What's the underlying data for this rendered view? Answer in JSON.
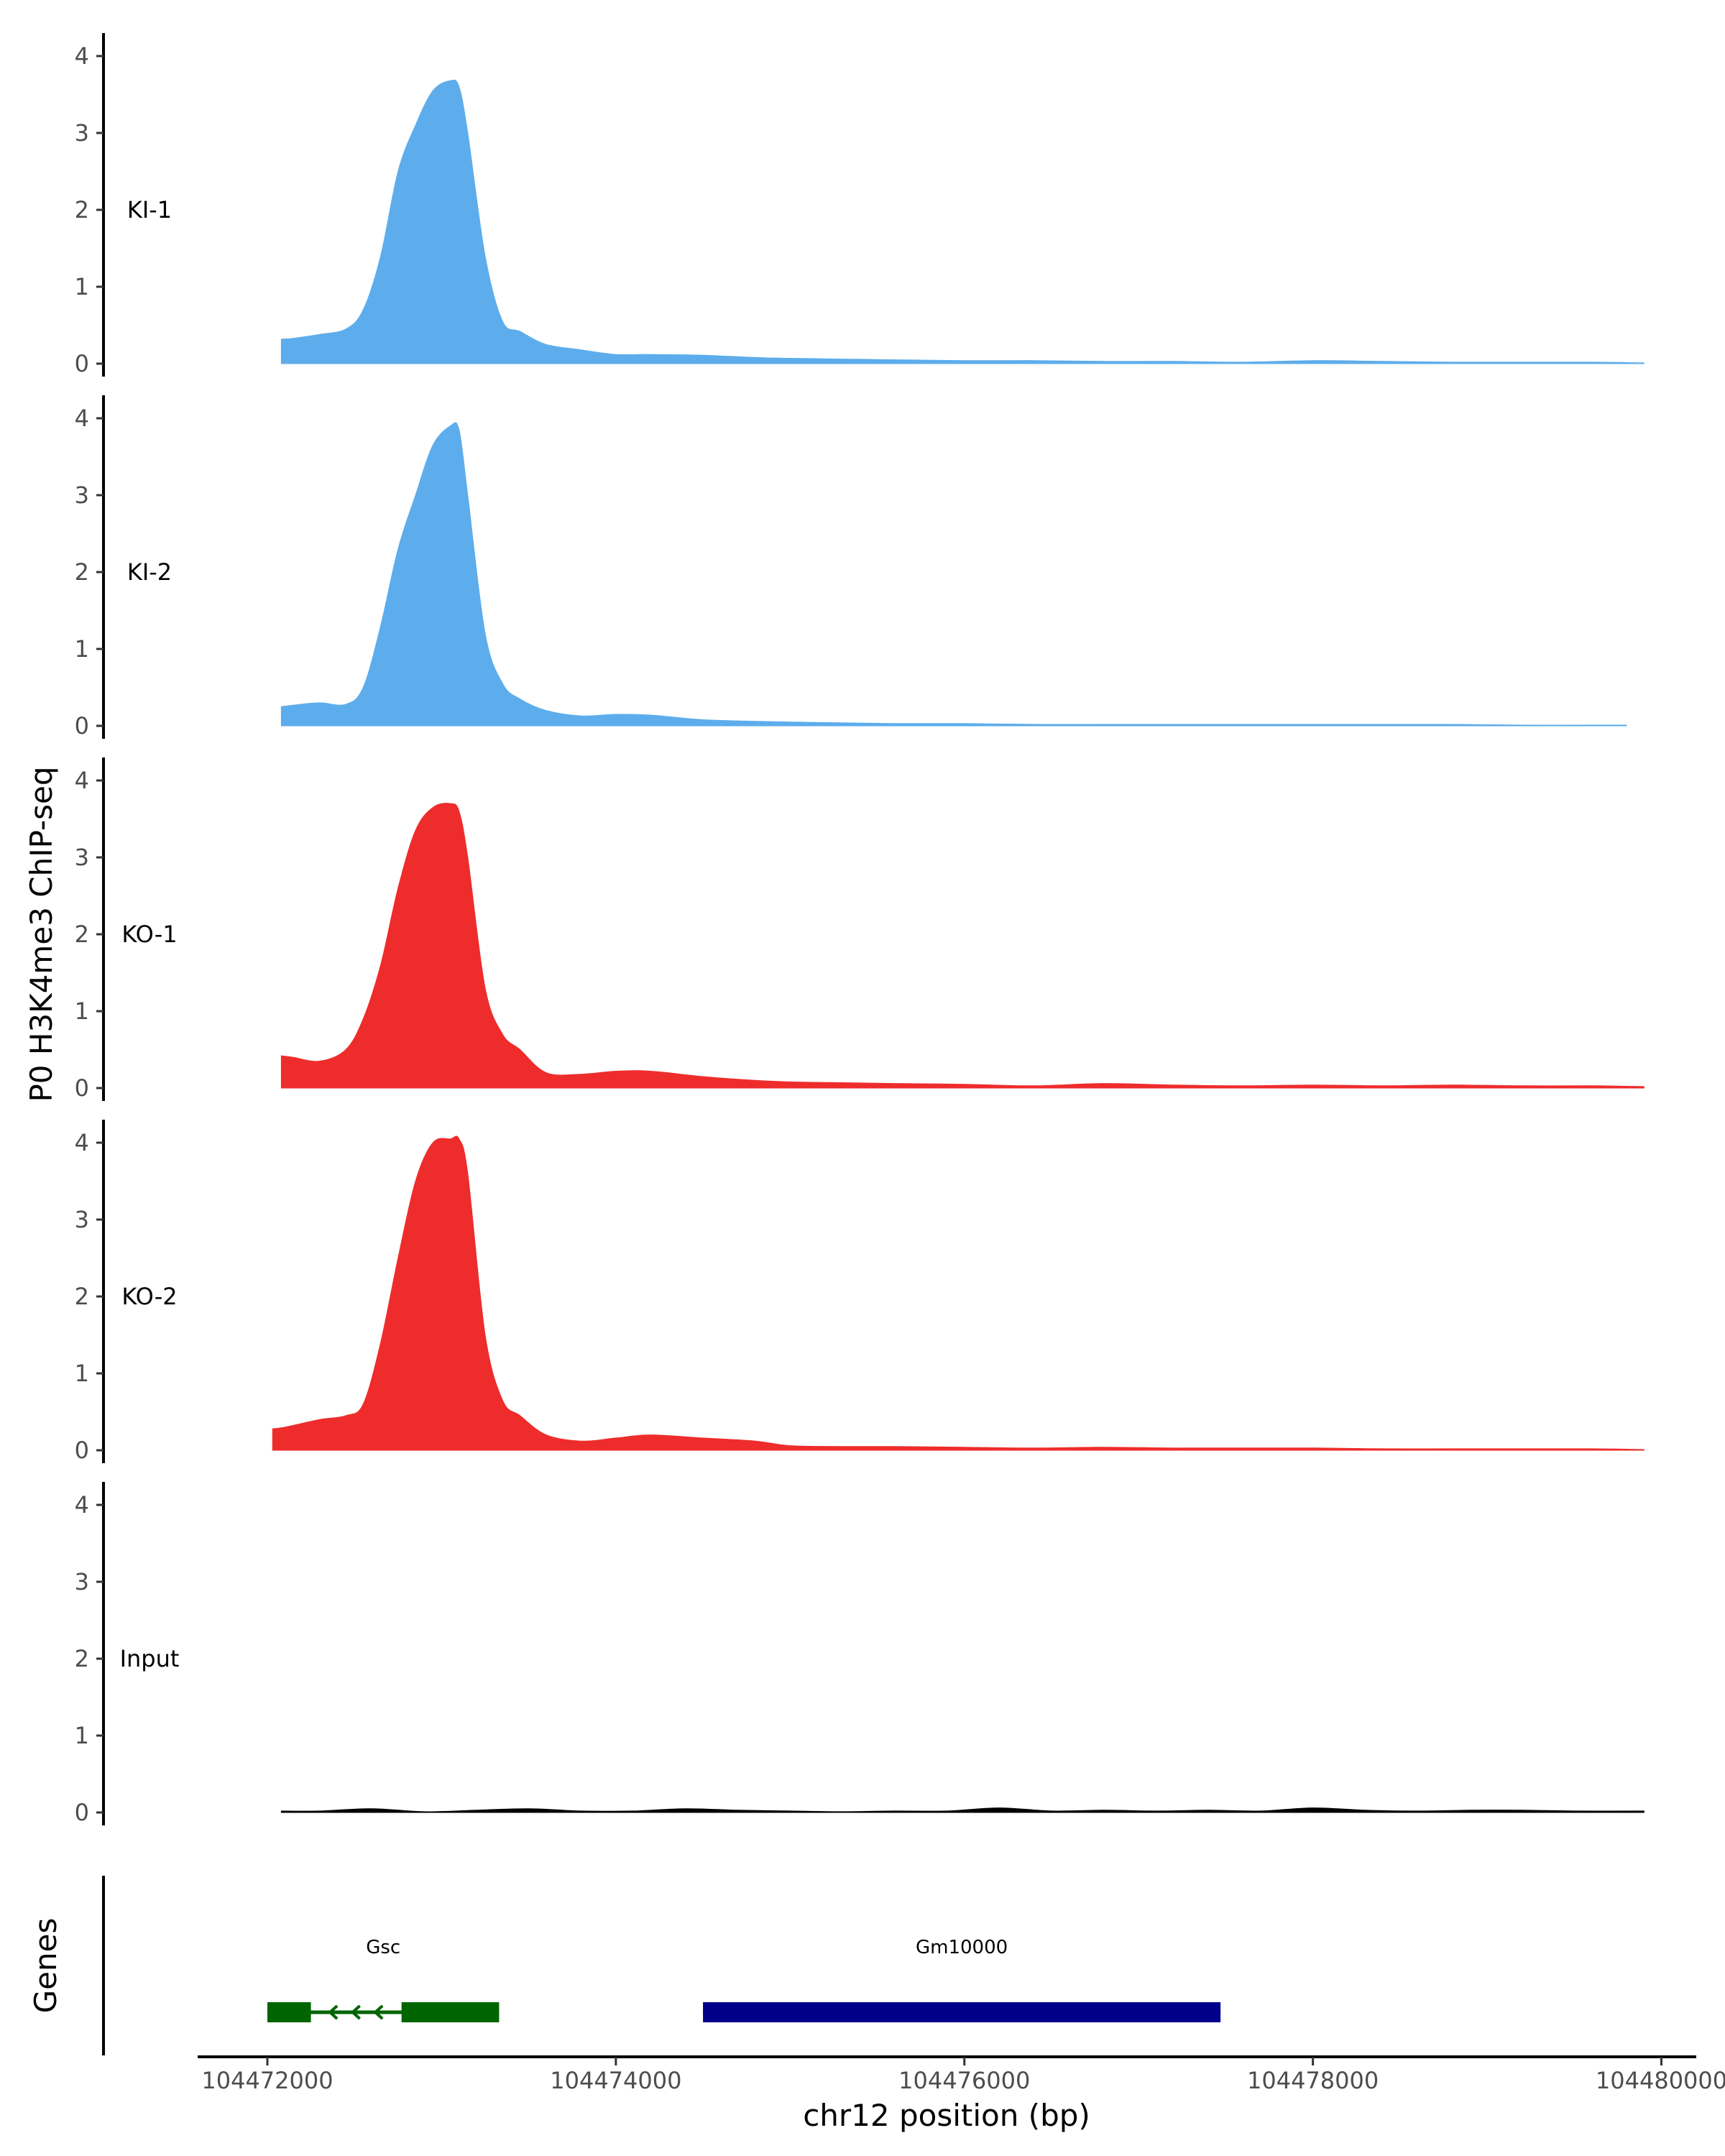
{
  "chart_data": {
    "type": "area",
    "title": "",
    "ylabel": "P0 H3K4me3 ChIP-seq",
    "xlabel": "chr12 position (bp)",
    "ylim": [
      0,
      4.3
    ],
    "yticks": [
      0,
      1,
      2,
      3,
      4
    ],
    "ytick_labels": [
      "0",
      "1",
      "2",
      "3",
      "4"
    ],
    "xlim": [
      104471600,
      104480200
    ],
    "xticks": [
      104472000,
      104474000,
      104476000,
      104478000,
      104480000
    ],
    "xtick_labels": [
      "104472000",
      "104474000",
      "104476000",
      "104478000",
      "104480000"
    ],
    "genes_track_label": "Genes",
    "tracks": [
      {
        "name": "KI-1",
        "color": "#5DADEC",
        "x": [
          104472080,
          104472150,
          104472300,
          104472450,
          104472550,
          104472650,
          104472750,
          104472850,
          104472950,
          104473050,
          104473100,
          104473150,
          104473250,
          104473350,
          104473450,
          104473600,
          104473800,
          104474000,
          104474200,
          104474500,
          104474800,
          104475000,
          104475300,
          104475600,
          104476000,
          104476400,
          104476800,
          104477200,
          104477600,
          104478000,
          104478400,
          104478800,
          104479200,
          104479600,
          104479900
        ],
        "values": [
          0.32,
          0.33,
          0.38,
          0.45,
          0.7,
          1.4,
          2.5,
          3.1,
          3.55,
          3.68,
          3.6,
          3.0,
          1.4,
          0.55,
          0.42,
          0.25,
          0.18,
          0.12,
          0.12,
          0.11,
          0.08,
          0.07,
          0.06,
          0.05,
          0.04,
          0.04,
          0.03,
          0.03,
          0.02,
          0.04,
          0.03,
          0.02,
          0.02,
          0.02,
          0.01
        ]
      },
      {
        "name": "KI-2",
        "color": "#5DADEC",
        "x": [
          104472080,
          104472150,
          104472300,
          104472450,
          104472550,
          104472650,
          104472750,
          104472850,
          104472950,
          104473050,
          104473100,
          104473150,
          104473250,
          104473350,
          104473450,
          104473600,
          104473800,
          104474000,
          104474200,
          104474500,
          104474800,
          104475000,
          104475300,
          104475600,
          104476000,
          104476400,
          104476800,
          104477200,
          104477600,
          104478000,
          104478400,
          104478800,
          104479200,
          104479600,
          104479800
        ],
        "values": [
          0.25,
          0.27,
          0.3,
          0.28,
          0.5,
          1.3,
          2.3,
          3.0,
          3.65,
          3.9,
          3.85,
          3.0,
          1.2,
          0.55,
          0.35,
          0.2,
          0.13,
          0.15,
          0.14,
          0.08,
          0.06,
          0.05,
          0.04,
          0.03,
          0.03,
          0.02,
          0.02,
          0.02,
          0.02,
          0.02,
          0.02,
          0.02,
          0.01,
          0.01,
          0.01
        ]
      },
      {
        "name": "KO-1",
        "color": "#EE2C2C",
        "x": [
          104472080,
          104472150,
          104472300,
          104472450,
          104472550,
          104472650,
          104472750,
          104472850,
          104472950,
          104473050,
          104473100,
          104473150,
          104473250,
          104473350,
          104473450,
          104473600,
          104473800,
          104474000,
          104474200,
          104474500,
          104474800,
          104475000,
          104475300,
          104475600,
          104476000,
          104476400,
          104476800,
          104477200,
          104477600,
          104478000,
          104478400,
          104478800,
          104479200,
          104479600,
          104479900
        ],
        "values": [
          0.42,
          0.4,
          0.35,
          0.5,
          0.9,
          1.6,
          2.6,
          3.35,
          3.65,
          3.7,
          3.6,
          3.0,
          1.3,
          0.7,
          0.5,
          0.2,
          0.18,
          0.22,
          0.22,
          0.15,
          0.1,
          0.08,
          0.07,
          0.06,
          0.05,
          0.03,
          0.06,
          0.04,
          0.03,
          0.04,
          0.03,
          0.04,
          0.03,
          0.03,
          0.02
        ]
      },
      {
        "name": "KO-2",
        "color": "#EE2C2C",
        "x": [
          104472030,
          104472100,
          104472300,
          104472450,
          104472550,
          104472650,
          104472750,
          104472850,
          104472950,
          104473050,
          104473100,
          104473150,
          104473250,
          104473350,
          104473450,
          104473600,
          104473800,
          104474000,
          104474200,
          104474500,
          104474800,
          104475000,
          104475300,
          104475600,
          104476000,
          104476400,
          104476800,
          104477200,
          104477600,
          104478000,
          104478400,
          104478800,
          104479200,
          104479600,
          104479900
        ],
        "values": [
          0.28,
          0.3,
          0.4,
          0.45,
          0.6,
          1.4,
          2.5,
          3.5,
          4.0,
          4.05,
          4.05,
          3.6,
          1.5,
          0.65,
          0.45,
          0.2,
          0.12,
          0.16,
          0.2,
          0.16,
          0.12,
          0.06,
          0.05,
          0.05,
          0.04,
          0.03,
          0.04,
          0.03,
          0.03,
          0.03,
          0.02,
          0.02,
          0.02,
          0.02,
          0.01
        ]
      },
      {
        "name": "Input",
        "color": "#000000",
        "x": [
          104472080,
          104472300,
          104472600,
          104472900,
          104473200,
          104473500,
          104473800,
          104474100,
          104474400,
          104474700,
          104475000,
          104475300,
          104475600,
          104475900,
          104476200,
          104476500,
          104476800,
          104477100,
          104477400,
          104477700,
          104478000,
          104478300,
          104478600,
          104478900,
          104479200,
          104479500,
          104479900
        ],
        "values": [
          0.02,
          0.02,
          0.05,
          0.01,
          0.03,
          0.05,
          0.02,
          0.02,
          0.05,
          0.03,
          0.02,
          0.01,
          0.02,
          0.02,
          0.06,
          0.02,
          0.03,
          0.02,
          0.03,
          0.02,
          0.06,
          0.03,
          0.02,
          0.03,
          0.03,
          0.02,
          0.02
        ]
      }
    ],
    "genes": [
      {
        "name": "Gsc",
        "color": "#006400",
        "start": 104472000,
        "end": 104473330,
        "strand": "-",
        "exons": [
          [
            104472000,
            104472250
          ],
          [
            104472770,
            104473330
          ]
        ]
      },
      {
        "name": "Gm10000",
        "color": "#00008B",
        "start": 104474500,
        "end": 104477470,
        "strand": "+",
        "exons": [
          [
            104474500,
            104477470
          ]
        ]
      }
    ]
  }
}
